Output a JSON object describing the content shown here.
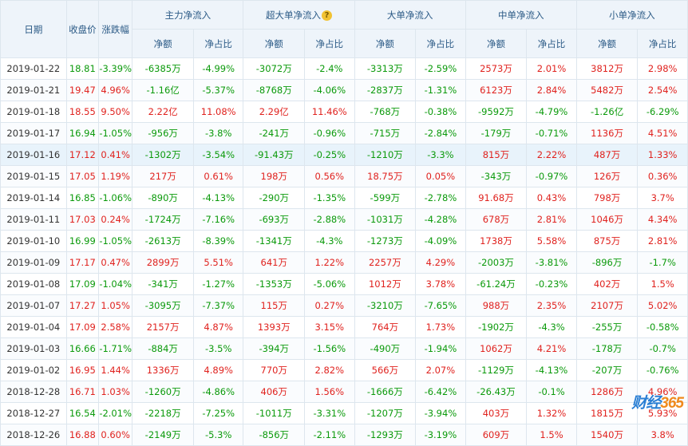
{
  "header": {
    "date": "日期",
    "close": "收盘价",
    "change": "涨跌幅",
    "groups": [
      "主力净流入",
      "超大单净流入",
      "大单净流入",
      "中单净流入",
      "小单净流入"
    ],
    "net": "净额",
    "ratio": "净占比",
    "help_icon": "?"
  },
  "rows": [
    [
      "2019-01-22",
      "18.81",
      "-3.39%",
      "-6385万",
      "-4.99%",
      "-3072万",
      "-2.4%",
      "-3313万",
      "-2.59%",
      "2573万",
      "2.01%",
      "3812万",
      "2.98%"
    ],
    [
      "2019-01-21",
      "19.47",
      "4.96%",
      "-1.16亿",
      "-5.37%",
      "-8768万",
      "-4.06%",
      "-2837万",
      "-1.31%",
      "6123万",
      "2.84%",
      "5482万",
      "2.54%"
    ],
    [
      "2019-01-18",
      "18.55",
      "9.50%",
      "2.22亿",
      "11.08%",
      "2.29亿",
      "11.46%",
      "-768万",
      "-0.38%",
      "-9592万",
      "-4.79%",
      "-1.26亿",
      "-6.29%"
    ],
    [
      "2019-01-17",
      "16.94",
      "-1.05%",
      "-956万",
      "-3.8%",
      "-241万",
      "-0.96%",
      "-715万",
      "-2.84%",
      "-179万",
      "-0.71%",
      "1136万",
      "4.51%"
    ],
    [
      "2019-01-16",
      "17.12",
      "0.41%",
      "-1302万",
      "-3.54%",
      "-91.43万",
      "-0.25%",
      "-1210万",
      "-3.3%",
      "815万",
      "2.22%",
      "487万",
      "1.33%"
    ],
    [
      "2019-01-15",
      "17.05",
      "1.19%",
      "217万",
      "0.61%",
      "198万",
      "0.56%",
      "18.75万",
      "0.05%",
      "-343万",
      "-0.97%",
      "126万",
      "0.36%"
    ],
    [
      "2019-01-14",
      "16.85",
      "-1.06%",
      "-890万",
      "-4.13%",
      "-290万",
      "-1.35%",
      "-599万",
      "-2.78%",
      "91.68万",
      "0.43%",
      "798万",
      "3.7%"
    ],
    [
      "2019-01-11",
      "17.03",
      "0.24%",
      "-1724万",
      "-7.16%",
      "-693万",
      "-2.88%",
      "-1031万",
      "-4.28%",
      "678万",
      "2.81%",
      "1046万",
      "4.34%"
    ],
    [
      "2019-01-10",
      "16.99",
      "-1.05%",
      "-2613万",
      "-8.39%",
      "-1341万",
      "-4.3%",
      "-1273万",
      "-4.09%",
      "1738万",
      "5.58%",
      "875万",
      "2.81%"
    ],
    [
      "2019-01-09",
      "17.17",
      "0.47%",
      "2899万",
      "5.51%",
      "641万",
      "1.22%",
      "2257万",
      "4.29%",
      "-2003万",
      "-3.81%",
      "-896万",
      "-1.7%"
    ],
    [
      "2019-01-08",
      "17.09",
      "-1.04%",
      "-341万",
      "-1.27%",
      "-1353万",
      "-5.06%",
      "1012万",
      "3.78%",
      "-61.24万",
      "-0.23%",
      "402万",
      "1.5%"
    ],
    [
      "2019-01-07",
      "17.27",
      "1.05%",
      "-3095万",
      "-7.37%",
      "115万",
      "0.27%",
      "-3210万",
      "-7.65%",
      "988万",
      "2.35%",
      "2107万",
      "5.02%"
    ],
    [
      "2019-01-04",
      "17.09",
      "2.58%",
      "2157万",
      "4.87%",
      "1393万",
      "3.15%",
      "764万",
      "1.73%",
      "-1902万",
      "-4.3%",
      "-255万",
      "-0.58%"
    ],
    [
      "2019-01-03",
      "16.66",
      "-1.71%",
      "-884万",
      "-3.5%",
      "-394万",
      "-1.56%",
      "-490万",
      "-1.94%",
      "1062万",
      "4.21%",
      "-178万",
      "-0.7%"
    ],
    [
      "2019-01-02",
      "16.95",
      "1.44%",
      "1336万",
      "4.89%",
      "770万",
      "2.82%",
      "566万",
      "2.07%",
      "-1129万",
      "-4.13%",
      "-207万",
      "-0.76%"
    ],
    [
      "2018-12-28",
      "16.71",
      "1.03%",
      "-1260万",
      "-4.86%",
      "406万",
      "1.56%",
      "-1666万",
      "-6.42%",
      "-26.43万",
      "-0.1%",
      "1286万",
      "4.96%"
    ],
    [
      "2018-12-27",
      "16.54",
      "-2.01%",
      "-2218万",
      "-7.25%",
      "-1011万",
      "-3.31%",
      "-1207万",
      "-3.94%",
      "403万",
      "1.32%",
      "1815万",
      "5.93%"
    ],
    [
      "2018-12-26",
      "16.88",
      "0.60%",
      "-2149万",
      "-5.3%",
      "-856万",
      "-2.11%",
      "-1293万",
      "-3.19%",
      "609万",
      "1.5%",
      "1540万",
      "3.8%"
    ]
  ],
  "highlight_row": 4,
  "logo": {
    "text": "财经",
    "num": "365"
  },
  "colors": {
    "up": "#e0221e",
    "down": "#0b9a0b",
    "header_bg": "#eef4fa"
  }
}
